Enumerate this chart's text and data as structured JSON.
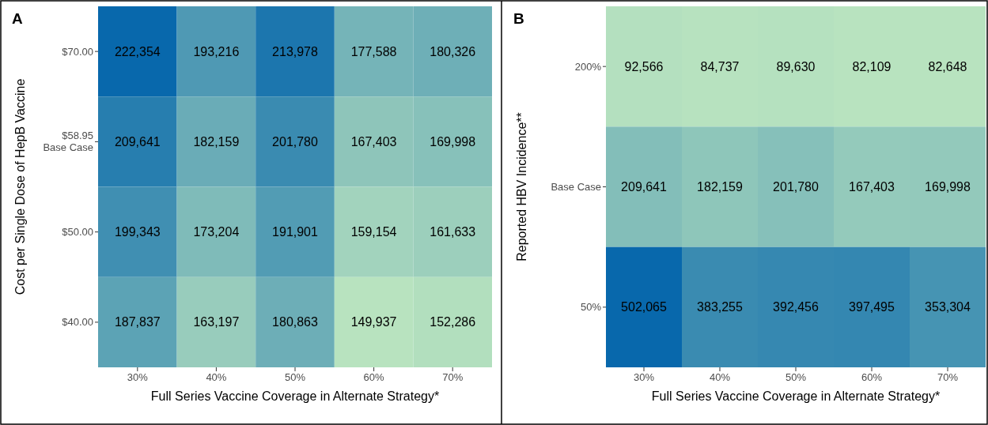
{
  "chart_data": [
    {
      "type": "heatmap",
      "title": "A",
      "data_labels": true,
      "xlabel": "Full Series Vaccine Coverage in Alternate Strategy*",
      "ylabel": "Cost per Single Dose of HepB Vaccine",
      "categories": [
        "30%",
        "40%",
        "50%",
        "60%",
        "70%"
      ],
      "y_categories": [
        "$70.00",
        "$58.95\nBase Case",
        "$50.00",
        "$40.00"
      ],
      "cells": [
        [
          222354,
          193216,
          213978,
          177588,
          180326
        ],
        [
          209641,
          182159,
          201780,
          167403,
          169998
        ],
        [
          199343,
          173204,
          191901,
          159154,
          161633
        ],
        [
          187837,
          163197,
          180863,
          149937,
          152286
        ]
      ],
      "cell_labels": [
        [
          "222,354",
          "193,216",
          "213,978",
          "177,588",
          "180,326"
        ],
        [
          "209,641",
          "182,159",
          "201,780",
          "167,403",
          "169,998"
        ],
        [
          "199,343",
          "173,204",
          "191,901",
          "159,154",
          "161,633"
        ],
        [
          "187,837",
          "163,197",
          "180,863",
          "149,937",
          "152,286"
        ]
      ]
    },
    {
      "type": "heatmap",
      "title": "B",
      "data_labels": true,
      "xlabel": "Full Series Vaccine Coverage in Alternate Strategy*",
      "ylabel": "Reported HBV Incidence**",
      "categories": [
        "30%",
        "40%",
        "50%",
        "60%",
        "70%"
      ],
      "y_categories": [
        "200%",
        "Base Case",
        "50%"
      ],
      "cells": [
        [
          92566,
          84737,
          89630,
          82109,
          82648
        ],
        [
          209641,
          182159,
          201780,
          167403,
          169998
        ],
        [
          502065,
          383255,
          392456,
          397495,
          353304
        ]
      ],
      "cell_labels": [
        [
          "92,566",
          "84,737",
          "89,630",
          "82,109",
          "82,648"
        ],
        [
          "209,641",
          "182,159",
          "201,780",
          "167,403",
          "169,998"
        ],
        [
          "502,065",
          "383,255",
          "392,456",
          "397,495",
          "353,304"
        ]
      ]
    }
  ]
}
